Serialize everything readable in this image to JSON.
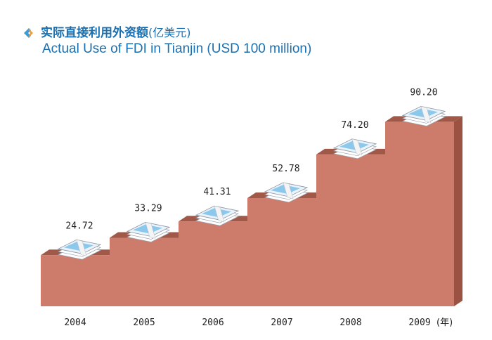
{
  "title_zh": "实际直接利用外资额",
  "title_zh_unit": "(亿美元)",
  "title_en": "Actual Use of FDI in Tianjin (USD 100 million)",
  "icons": {
    "bullet": "chevron-right-bullet-icon",
    "marker": "money-stack-icon"
  },
  "colors": {
    "title": "#1a6fb0",
    "step_front": "#cd7c6c",
    "step_top": "#a05848",
    "step_side": "#9c5242",
    "bullet_light": "#3f9ad6",
    "bullet_orange": "#f29b2e"
  },
  "chart_data": {
    "type": "bar",
    "categories": [
      "2004",
      "2005",
      "2006",
      "2007",
      "2008",
      "2009"
    ],
    "values": [
      24.72,
      33.29,
      41.31,
      52.78,
      74.2,
      90.2
    ],
    "data_labels": [
      "24.72",
      "33.29",
      "41.31",
      "52.78",
      "74.20",
      "90.20"
    ],
    "x_unit_label": "(年)",
    "style": "3d-staircase with money-stack markers",
    "ylim": [
      0,
      100
    ],
    "grid": false,
    "legend": "none"
  }
}
